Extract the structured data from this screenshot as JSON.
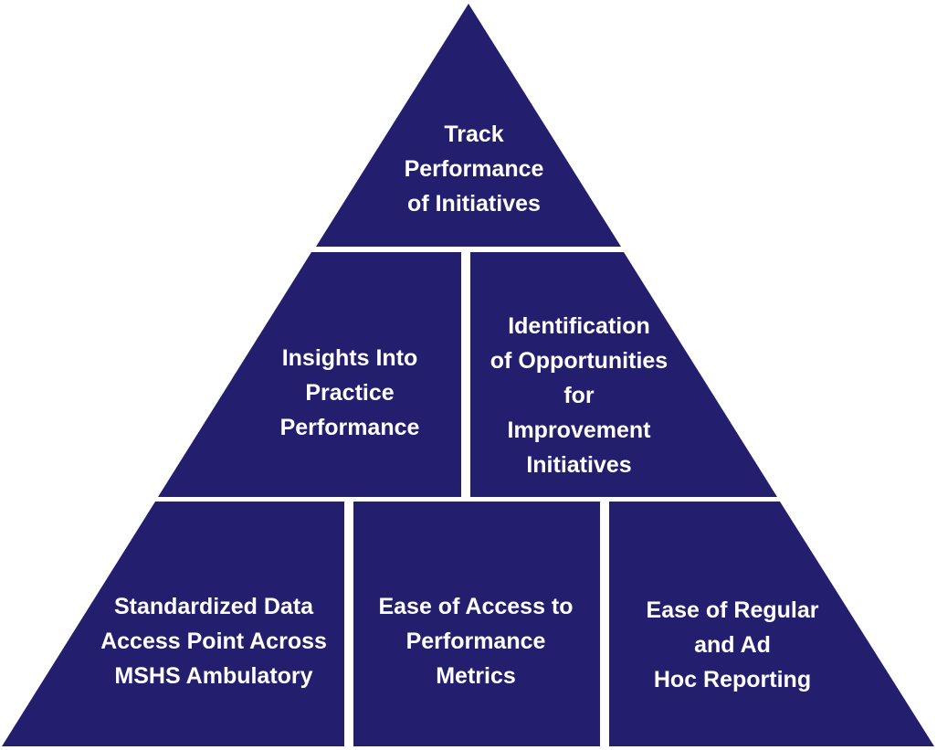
{
  "colors": {
    "fill": "#231f6e",
    "separator": "#ffffff",
    "text": "#ffffff"
  },
  "pyramid": {
    "top": {
      "label": "Track\nPerformance\nof Initiatives"
    },
    "middle": [
      {
        "label": "Insights Into\nPractice\nPerformance"
      },
      {
        "label": "Identification\nof Opportunities\nfor\nImprovement\nInitiatives"
      }
    ],
    "bottom": [
      {
        "label": "Standardized Data\nAccess Point Across\nMSHS Ambulatory"
      },
      {
        "label": "Ease of Access to\nPerformance\nMetrics"
      },
      {
        "label": "Ease of Regular\nand Ad\nHoc Reporting"
      }
    ]
  }
}
